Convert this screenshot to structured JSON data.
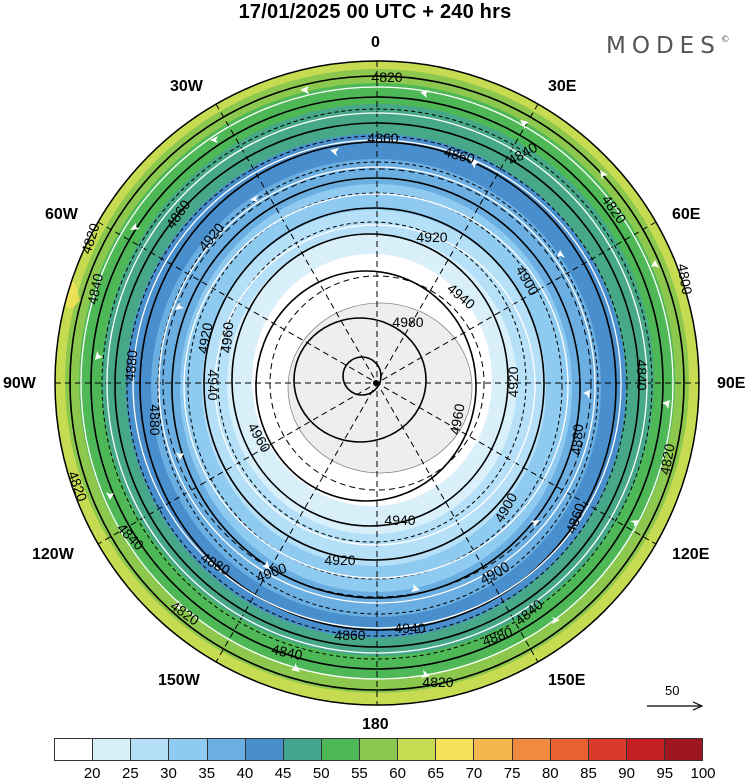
{
  "title": "17/01/2025  00 UTC  + 240 hrs",
  "brand": {
    "name": "MODES",
    "mark": "©"
  },
  "longitude_labels": [
    "0",
    "30E",
    "60E",
    "90E",
    "120E",
    "150E",
    "180",
    "150W",
    "120W",
    "90W",
    "60W",
    "30W"
  ],
  "contour_labels": [
    "4820",
    "4860",
    "4860",
    "4840",
    "4820",
    "4800",
    "4820",
    "4840",
    "4860",
    "4880",
    "4920",
    "4940",
    "4900",
    "4980",
    "4920",
    "4940",
    "4960",
    "4920",
    "4960",
    "4940",
    "4900",
    "4920",
    "4880",
    "4860",
    "4840",
    "4820",
    "4900",
    "4880",
    "4860",
    "4840",
    "4820",
    "4840",
    "4820",
    "4880",
    "4900",
    "4920",
    "4960",
    "4940",
    "4880",
    "4840",
    "4820"
  ],
  "wind_reference": {
    "label": "50"
  },
  "colorbar": {
    "colors": [
      "#ffffff",
      "#d9f0fb",
      "#b5e0f7",
      "#8fcaf0",
      "#6aaee2",
      "#4a8fcd",
      "#44a590",
      "#4fb856",
      "#8cc84d",
      "#c7db52",
      "#f6e259",
      "#f4b64f",
      "#f08a3e",
      "#e8612f",
      "#da3a2a",
      "#c51f26",
      "#9e1620"
    ],
    "tick_labels": [
      "20",
      "25",
      "30",
      "35",
      "40",
      "45",
      "50",
      "55",
      "60",
      "65",
      "70",
      "75",
      "80",
      "85",
      "90",
      "95",
      "100"
    ]
  }
}
